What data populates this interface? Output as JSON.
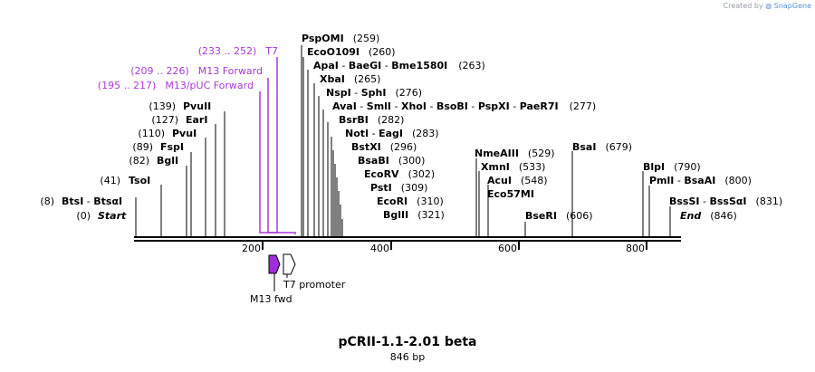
{
  "credit": {
    "prefix": "Created by",
    "brand": "SnapGene"
  },
  "title": "pCRII-1.1-2.01 beta",
  "length_label": "846 bp",
  "scale": {
    "ticks": [
      "200",
      "400",
      "600",
      "800"
    ]
  },
  "ends": [
    {
      "name": "Start",
      "pos": "(0)"
    },
    {
      "name": "End",
      "pos": "(846)"
    }
  ],
  "sites": [
    {
      "pos": "(8)",
      "names": [
        "BtsI",
        "BtsαI"
      ]
    },
    {
      "pos": "(41)",
      "names": [
        "TsoI"
      ]
    },
    {
      "pos": "(82)",
      "names": [
        "BglI"
      ]
    },
    {
      "pos": "(89)",
      "names": [
        "FspI"
      ]
    },
    {
      "pos": "(110)",
      "names": [
        "PvuI"
      ]
    },
    {
      "pos": "(127)",
      "names": [
        "EarI"
      ]
    },
    {
      "pos": "(139)",
      "names": [
        "PvuII"
      ]
    },
    {
      "pos": "(259)",
      "names": [
        "PspOMI"
      ]
    },
    {
      "pos": "(260)",
      "names": [
        "EcoO109I"
      ]
    },
    {
      "pos": "(263)",
      "names": [
        "ApaI",
        "BaeGI",
        "Bme1580I"
      ]
    },
    {
      "pos": "(265)",
      "names": [
        "XbaI"
      ]
    },
    {
      "pos": "(276)",
      "names": [
        "NspI",
        "SphI"
      ]
    },
    {
      "pos": "(277)",
      "names": [
        "AvaI",
        "SmlI",
        "XhoI",
        "BsoBI",
        "PspXI",
        "PaeR7I"
      ]
    },
    {
      "pos": "(282)",
      "names": [
        "BsrBI"
      ]
    },
    {
      "pos": "(283)",
      "names": [
        "NotI",
        "EagI"
      ]
    },
    {
      "pos": "(296)",
      "names": [
        "BstXI"
      ]
    },
    {
      "pos": "(300)",
      "names": [
        "BsaBI"
      ]
    },
    {
      "pos": "(302)",
      "names": [
        "EcoRV"
      ]
    },
    {
      "pos": "(309)",
      "names": [
        "PstI"
      ]
    },
    {
      "pos": "(310)",
      "names": [
        "EcoRI"
      ]
    },
    {
      "pos": "(321)",
      "names": [
        "BglII"
      ]
    },
    {
      "pos": "(529)",
      "names": [
        "NmeAIII"
      ]
    },
    {
      "pos": "(533)",
      "names": [
        "XmnI"
      ]
    },
    {
      "pos": "(548)",
      "names": [
        "AcuI"
      ]
    },
    {
      "pos": "",
      "names": [
        "Eco57MI"
      ]
    },
    {
      "pos": "(606)",
      "names": [
        "BseRI"
      ]
    },
    {
      "pos": "(679)",
      "names": [
        "BsaI"
      ]
    },
    {
      "pos": "(790)",
      "names": [
        "BlpI"
      ]
    },
    {
      "pos": "(800)",
      "names": [
        "PmlI",
        "BsaAI"
      ]
    },
    {
      "pos": "(831)",
      "names": [
        "BssSI",
        "BssSαI"
      ]
    }
  ],
  "primers": [
    {
      "range": "(233 .. 252)",
      "name": "T7"
    },
    {
      "range": "(209 .. 226)",
      "name": "M13 Forward"
    },
    {
      "range": "(195 .. 217)",
      "name": "M13/pUC Forward"
    }
  ],
  "features": [
    {
      "name": "M13 fwd",
      "color": "#9b30d9"
    },
    {
      "name": "T7 promoter",
      "color": "#ffffff"
    }
  ],
  "colors": {
    "primer": "#a83ad6",
    "line": "#000000"
  }
}
